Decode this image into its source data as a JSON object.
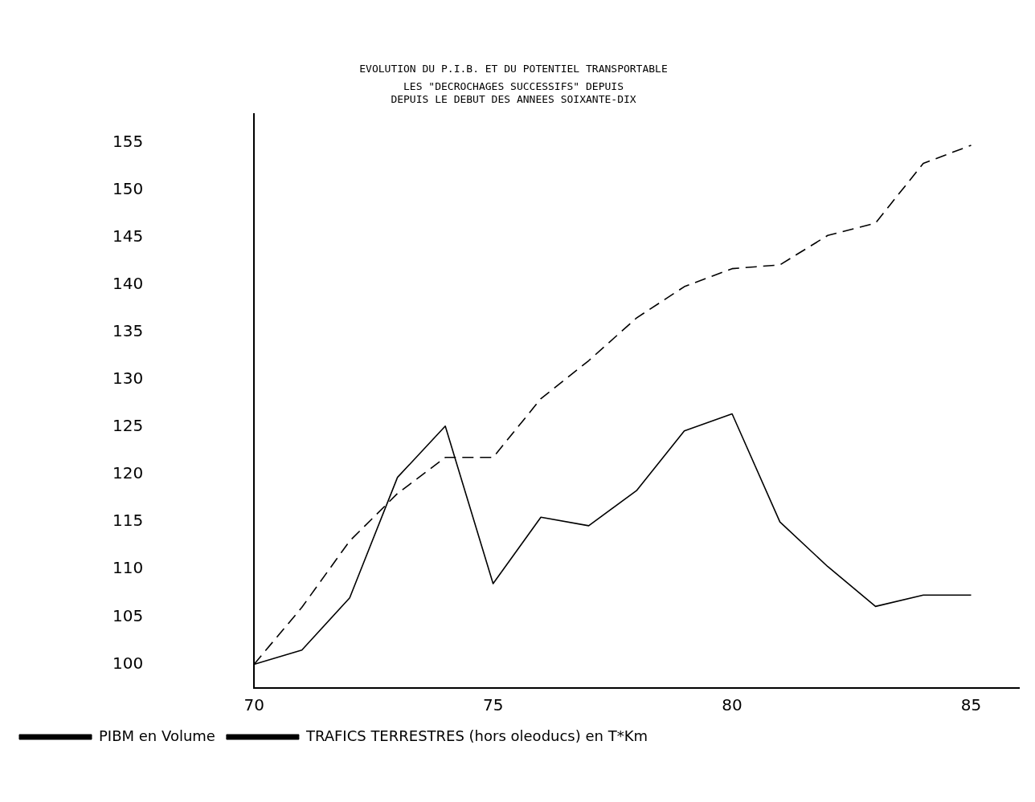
{
  "chart_data": {
    "type": "line",
    "title": "EVOLUTION DU P.I.B. ET DU POTENTIEL TRANSPORTABLE",
    "subtitle": "LES \"DECROCHAGES SUCCESSIFS\" DEPUIS\nDEPUIS LE DEBUT DES ANNEES SOIXANTE-DIX",
    "x": [
      70,
      71,
      72,
      73,
      74,
      75,
      76,
      77,
      78,
      79,
      80,
      81,
      82,
      83,
      84,
      85
    ],
    "series": [
      {
        "name": "PIBM en Volume",
        "color": "#000000",
        "line_style": "dashed",
        "x": [
          70,
          71,
          72,
          73,
          74,
          74.6,
          75,
          76,
          77,
          78,
          79,
          80,
          81,
          82,
          83,
          84,
          85
        ],
        "values": [
          100,
          106,
          113,
          118,
          121.8,
          121.8,
          121.8,
          128,
          132,
          136.5,
          139.8,
          141.7,
          142.1,
          145.2,
          146.5,
          152.8,
          154.7
        ]
      },
      {
        "name": "TRAFICS TERRESTRES (hors oleoducs) en T*Km",
        "color": "#000000",
        "line_style": "solid",
        "values": [
          100,
          101.5,
          107,
          119.7,
          125.1,
          108.5,
          115.5,
          114.6,
          118.3,
          124.6,
          126.4,
          115,
          110.3,
          106.1,
          107.3,
          107.3
        ]
      }
    ],
    "xlim": [
      70,
      86
    ],
    "xticks": [
      70,
      75,
      80,
      85
    ],
    "ylim": [
      97.5,
      158
    ],
    "yticks": [
      100,
      105,
      110,
      115,
      120,
      125,
      130,
      135,
      140,
      145,
      150,
      155
    ],
    "grid": false,
    "legend": "bottom left",
    "marker": "none"
  }
}
